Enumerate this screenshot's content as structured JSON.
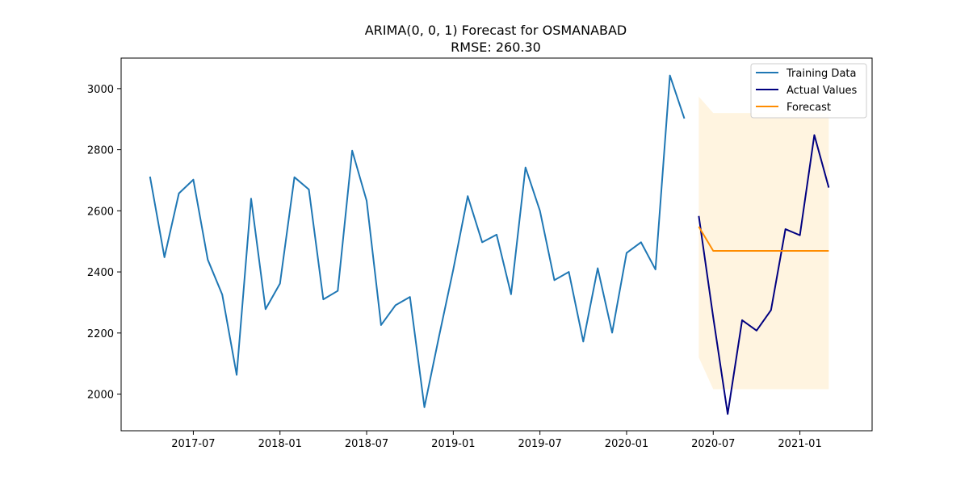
{
  "chart_data": {
    "type": "line",
    "title": "ARIMA(0, 0, 1) Forecast for OSMANABAD",
    "subtitle": "RMSE: 260.30",
    "xlabel": "",
    "ylabel": "",
    "xlim": [
      "2017-02-01",
      "2021-06-01"
    ],
    "ylim": [
      1880,
      3100
    ],
    "grid": false,
    "legend_position": "top-right",
    "x_ticks": [
      "2017-07",
      "2018-01",
      "2018-07",
      "2019-01",
      "2019-07",
      "2020-01",
      "2020-07",
      "2021-01"
    ],
    "y_ticks": [
      2000,
      2200,
      2400,
      2600,
      2800,
      3000
    ],
    "series": [
      {
        "name": "Training Data",
        "color": "#1f77b4",
        "x": [
          "2017-04",
          "2017-05",
          "2017-06",
          "2017-07",
          "2017-08",
          "2017-09",
          "2017-10",
          "2017-11",
          "2017-12",
          "2018-01",
          "2018-02",
          "2018-03",
          "2018-04",
          "2018-05",
          "2018-06",
          "2018-07",
          "2018-08",
          "2018-09",
          "2018-10",
          "2018-11",
          "2018-12",
          "2019-01",
          "2019-02",
          "2019-03",
          "2019-04",
          "2019-05",
          "2019-06",
          "2019-07",
          "2019-08",
          "2019-09",
          "2019-10",
          "2019-11",
          "2019-12",
          "2020-01",
          "2020-02",
          "2020-03",
          "2020-04",
          "2020-05"
        ],
        "values": [
          2712,
          2448,
          2657,
          2702,
          2440,
          2326,
          2063,
          2640,
          2278,
          2362,
          2710,
          2670,
          2310,
          2338,
          2797,
          2633,
          2226,
          2291,
          2318,
          1957,
          2186,
          2408,
          2648,
          2497,
          2522,
          2327,
          2742,
          2600,
          2373,
          2400,
          2172,
          2412,
          2201,
          2462,
          2497,
          2408,
          3043,
          2902
        ]
      },
      {
        "name": "Actual Values",
        "color": "#000080",
        "x": [
          "2020-06",
          "2020-07",
          "2020-08",
          "2020-09",
          "2020-10",
          "2020-11",
          "2020-12",
          "2021-01",
          "2021-02",
          "2021-03"
        ],
        "values": [
          2583,
          2251,
          1935,
          2242,
          2208,
          2275,
          2540,
          2520,
          2848,
          2676
        ]
      },
      {
        "name": "Forecast",
        "color": "#ff8c00",
        "x": [
          "2020-06",
          "2020-07",
          "2020-08",
          "2020-09",
          "2020-10",
          "2020-11",
          "2020-12",
          "2021-01",
          "2021-02",
          "2021-03"
        ],
        "values": [
          2548,
          2469,
          2469,
          2469,
          2469,
          2469,
          2469,
          2469,
          2469,
          2469
        ]
      }
    ],
    "confidence_interval": {
      "color": "#ffa500",
      "x": [
        "2020-06",
        "2020-07",
        "2020-08",
        "2020-09",
        "2020-10",
        "2020-11",
        "2020-12",
        "2021-01",
        "2021-02",
        "2021-03"
      ],
      "lower": [
        2120,
        2016,
        2016,
        2016,
        2016,
        2016,
        2016,
        2016,
        2016,
        2016
      ],
      "upper": [
        2974,
        2920,
        2920,
        2920,
        2920,
        2920,
        2920,
        2920,
        2920,
        2920
      ]
    }
  }
}
